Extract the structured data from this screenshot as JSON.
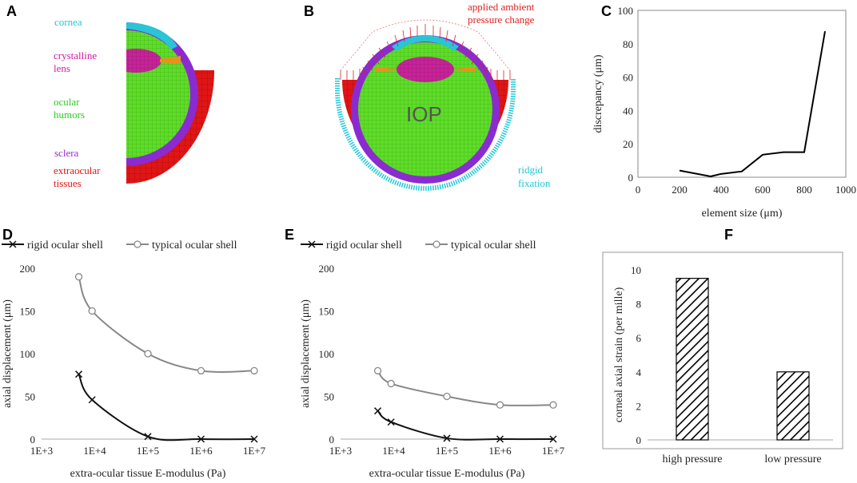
{
  "panels": {
    "a": {
      "letter": "A",
      "labels": {
        "cornea": "cornea",
        "lens1": "crystalline",
        "lens2": "lens",
        "humor1": "ocular",
        "humor2": "humors",
        "sclera": "sclera",
        "extra1": "extraocular",
        "extra2": "tissues"
      }
    },
    "b": {
      "letter": "B",
      "labels": {
        "ambient1": "applied ambient",
        "ambient2": "pressure change",
        "iop": "IOP",
        "fix1": "ridgid",
        "fix2": "fixation"
      }
    },
    "c": {
      "letter": "C"
    },
    "d": {
      "letter": "D"
    },
    "e": {
      "letter": "E"
    },
    "f": {
      "letter": "F"
    }
  },
  "colors": {
    "cornea": "#29c4d6",
    "lens": "#c8229a",
    "humor": "#5dde27",
    "sclera": "#8a2bd0",
    "extraocular": "#e01515",
    "pressure": "#e02020",
    "fixation": "#22c8d8",
    "rigid": "#111111",
    "typical": "#888888"
  },
  "chart_data": [
    {
      "id": "C",
      "type": "line",
      "x": [
        200,
        350,
        400,
        500,
        600,
        700,
        800,
        900
      ],
      "y": [
        4,
        0.5,
        2,
        3.5,
        13.5,
        15,
        15,
        87.5
      ],
      "xlabel": "element size (μm)",
      "ylabel": "discrepancy (μm)",
      "xlim": [
        0,
        1000
      ],
      "ylim": [
        0,
        100
      ],
      "xticks": [
        0,
        200,
        400,
        600,
        800,
        1000
      ],
      "yticks": [
        0,
        20,
        40,
        60,
        80,
        100
      ]
    },
    {
      "id": "D",
      "type": "line",
      "x_scale": "log",
      "xticks": [
        "1E+3",
        "1E+4",
        "1E+5",
        "1E+6",
        "1E+7"
      ],
      "xlim": [
        3,
        7
      ],
      "ylim": [
        0,
        200
      ],
      "yticks": [
        0,
        50,
        100,
        150,
        200
      ],
      "xlabel": "extra-ocular tissue E-modulus (Pa)",
      "ylabel": "axial displacement (μm)",
      "legend": [
        "rigid ocular shell",
        "typical ocular shell"
      ],
      "series": [
        {
          "name": "rigid ocular shell",
          "x": [
            3.7,
            3.95,
            5.0,
            6.0,
            7.0
          ],
          "y": [
            76,
            46,
            3,
            0,
            0
          ]
        },
        {
          "name": "typical ocular shell",
          "x": [
            3.7,
            3.95,
            5.0,
            6.0,
            7.0
          ],
          "y": [
            190,
            150,
            100,
            80,
            80
          ]
        }
      ]
    },
    {
      "id": "E",
      "type": "line",
      "x_scale": "log",
      "xticks": [
        "1E+3",
        "1E+4",
        "1E+5",
        "1E+6",
        "1E+7"
      ],
      "xlim": [
        3,
        7
      ],
      "ylim": [
        0,
        200
      ],
      "yticks": [
        0,
        50,
        100,
        150,
        200
      ],
      "xlabel": "extra-ocular tissue E-modulus (Pa)",
      "ylabel": "axial displacement (μm)",
      "legend": [
        "rigid ocular shell",
        "typical ocular shell"
      ],
      "series": [
        {
          "name": "rigid ocular shell",
          "x": [
            3.7,
            3.95,
            5.0,
            6.0,
            7.0
          ],
          "y": [
            33,
            20,
            1,
            0,
            0
          ]
        },
        {
          "name": "typical ocular shell",
          "x": [
            3.7,
            3.95,
            5.0,
            6.0,
            7.0
          ],
          "y": [
            80,
            65,
            50,
            40,
            40
          ]
        }
      ]
    },
    {
      "id": "F",
      "type": "bar",
      "categories": [
        "high pressure",
        "low pressure"
      ],
      "values": [
        9.5,
        4
      ],
      "ylabel": "corneal axial strain (per mille)",
      "ylim": [
        0,
        10
      ],
      "yticks": [
        0,
        2,
        4,
        6,
        8,
        10
      ]
    }
  ]
}
